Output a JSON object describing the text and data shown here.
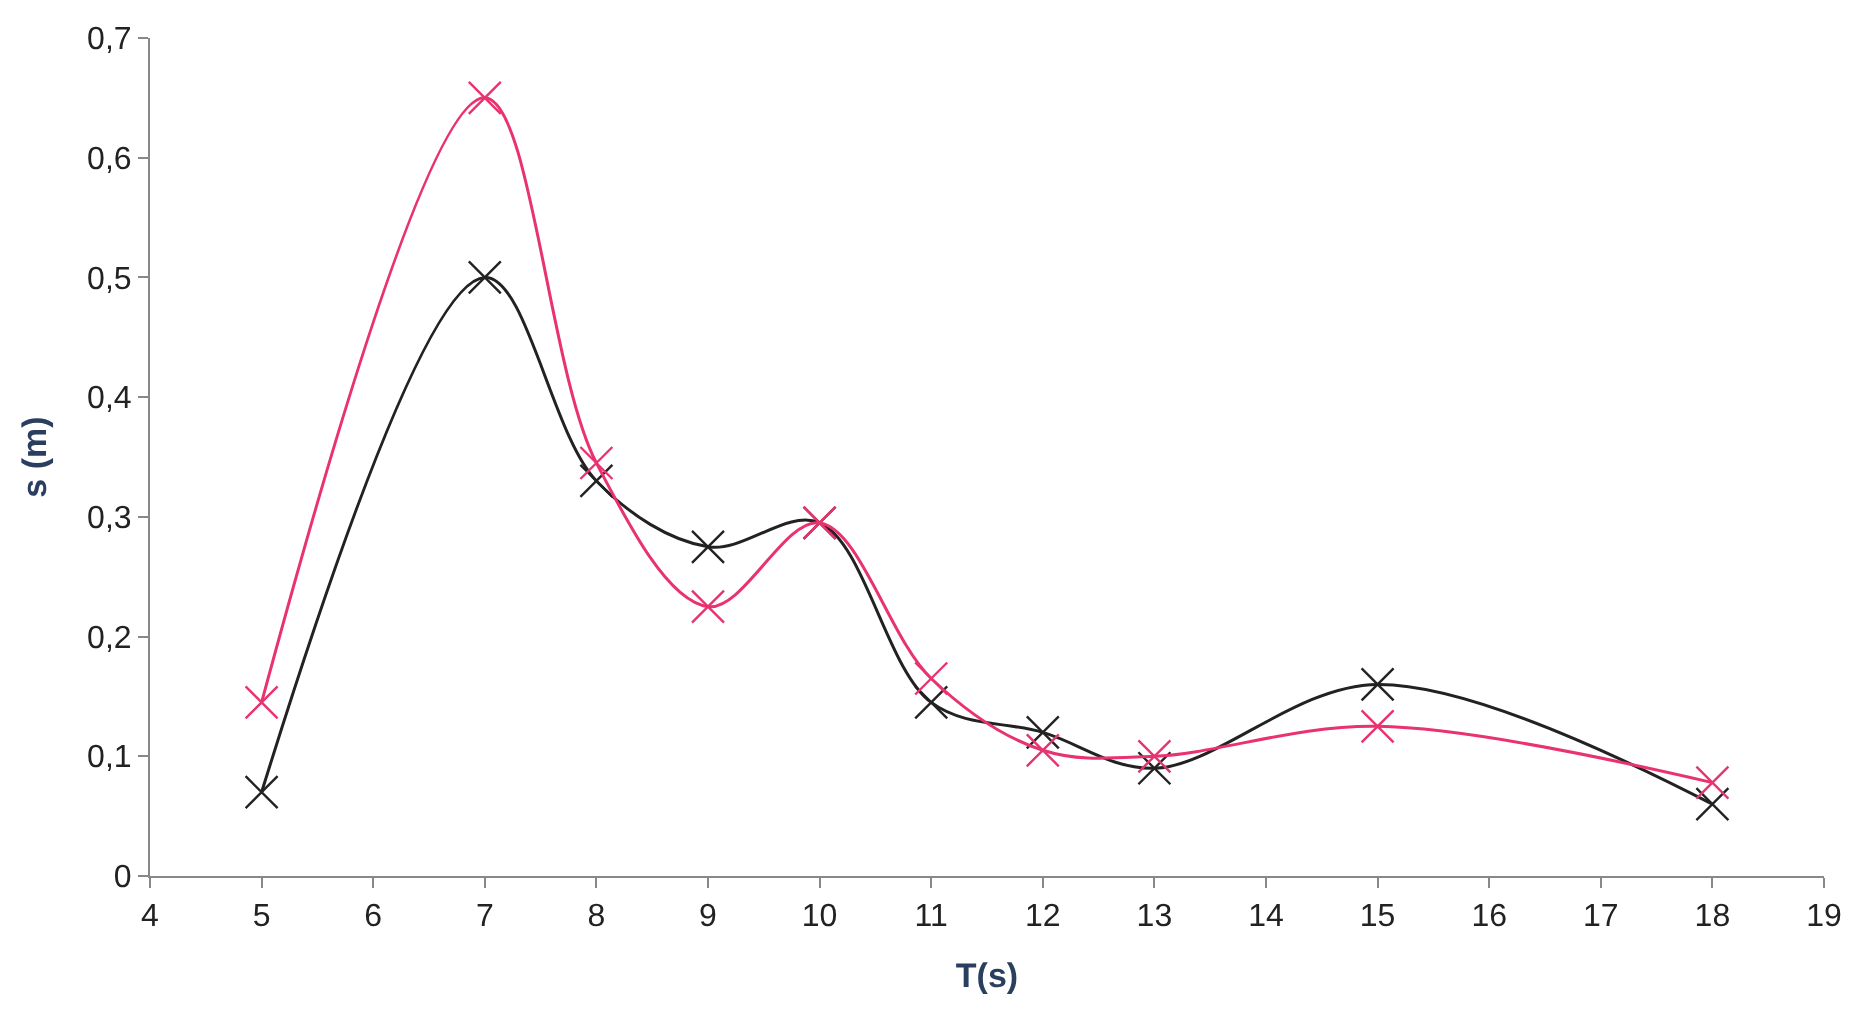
{
  "chart_data": {
    "type": "line",
    "xlabel": "T(s)",
    "ylabel": "s (m)",
    "x": [
      5,
      7,
      8,
      9,
      10,
      11,
      12,
      13,
      15,
      18
    ],
    "series": [
      {
        "color": "#222222",
        "values": [
          0.07,
          0.5,
          0.33,
          0.275,
          0.295,
          0.145,
          0.12,
          0.09,
          0.16,
          0.06
        ]
      },
      {
        "color": "#e8336e",
        "values": [
          0.145,
          0.65,
          0.345,
          0.225,
          0.295,
          0.165,
          0.105,
          0.1,
          0.125,
          0.078
        ]
      }
    ],
    "xlim": [
      4,
      19
    ],
    "xticks": [
      4,
      5,
      6,
      7,
      8,
      9,
      10,
      11,
      12,
      13,
      14,
      15,
      16,
      17,
      18,
      19
    ],
    "ylim": [
      0,
      0.7
    ],
    "yticks": [
      0,
      {
        "value": 0.1,
        "label": "0,1"
      },
      {
        "value": 0.2,
        "label": "0,2"
      },
      {
        "value": 0.3,
        "label": "0,3"
      },
      {
        "value": 0.4,
        "label": "0,4"
      },
      {
        "value": 0.5,
        "label": "0,5"
      },
      {
        "value": 0.6,
        "label": "0,6"
      },
      {
        "value": 0.7,
        "label": "0,7"
      }
    ],
    "marker": "cross"
  }
}
